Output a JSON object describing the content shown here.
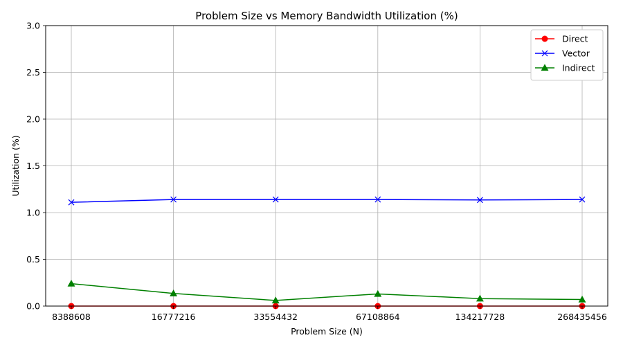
{
  "chart_data": {
    "type": "line",
    "title": "Problem Size vs Memory Bandwidth Utilization (%)",
    "xlabel": "Problem Size (N)",
    "ylabel": "Utilization (%)",
    "categories": [
      "8388608",
      "16777216",
      "33554432",
      "67108864",
      "134217728",
      "268435456"
    ],
    "ylim": [
      0,
      3.0
    ],
    "yticks": [
      "0.0",
      "0.5",
      "1.0",
      "1.5",
      "2.0",
      "2.5",
      "3.0"
    ],
    "grid": true,
    "legend_position": "top-right",
    "series": [
      {
        "name": "Direct",
        "color": "#ff0000",
        "marker": "circle",
        "values": [
          0.0,
          0.0,
          0.0,
          0.0,
          0.0,
          0.0
        ]
      },
      {
        "name": "Vector",
        "color": "#0000ff",
        "marker": "x",
        "values": [
          1.11,
          1.14,
          1.14,
          1.14,
          1.135,
          1.14
        ]
      },
      {
        "name": "Indirect",
        "color": "#008000",
        "marker": "triangle",
        "values": [
          0.24,
          0.135,
          0.06,
          0.13,
          0.08,
          0.07
        ]
      }
    ]
  }
}
